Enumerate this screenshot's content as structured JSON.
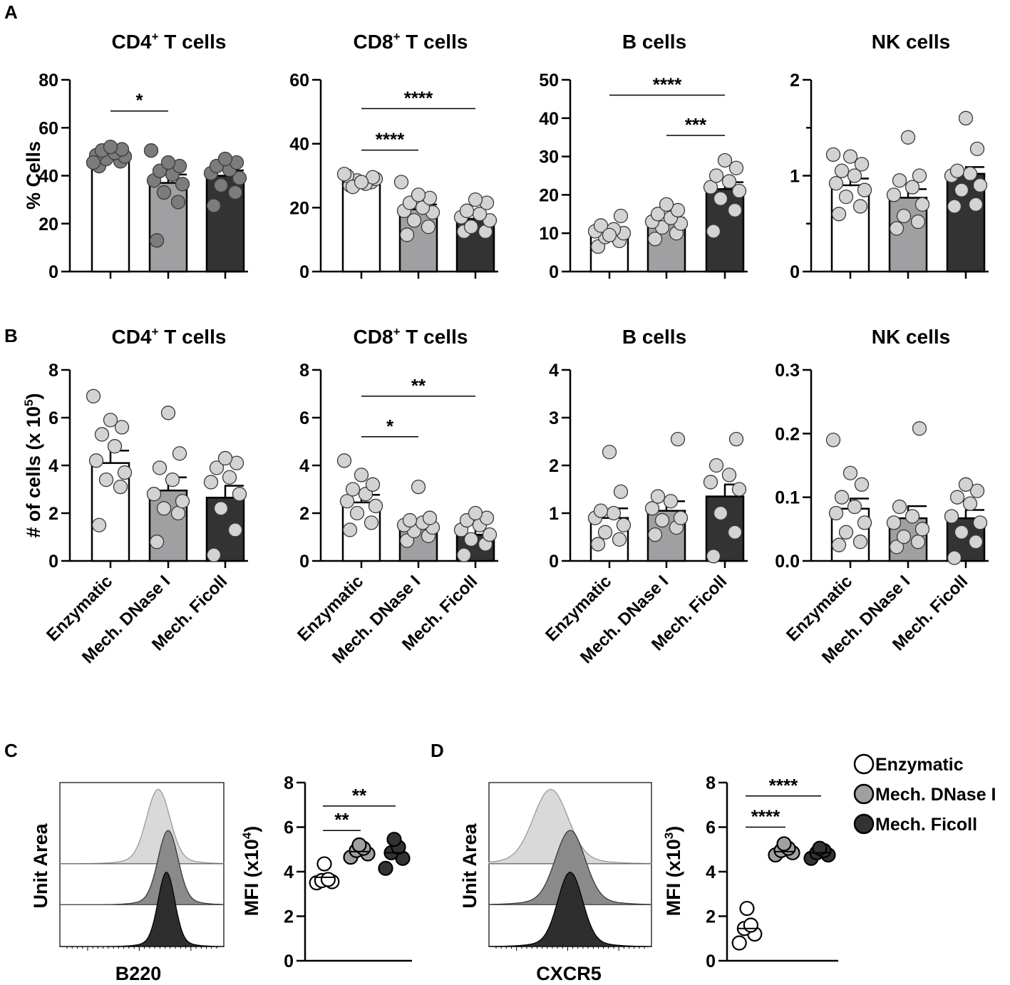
{
  "panel_letters": [
    "A",
    "B",
    "C",
    "D"
  ],
  "colors": {
    "enzymatic": "#ffffff",
    "dnase": "#a0a0a3",
    "ficoll": "#333333",
    "point_light": "#d3d3d3",
    "point_dark": "#7c7c7c",
    "hist_light": "#d9d9d9",
    "hist_mid": "#8a8a8a",
    "hist_dark": "#2e2e2e",
    "axis": "#000000"
  },
  "legend": {
    "items": [
      {
        "label": "Enzymatic",
        "color": "#ffffff"
      },
      {
        "label": "Mech. DNase I",
        "color": "#a0a0a3"
      },
      {
        "label": "Mech. Ficoll",
        "color": "#333333"
      }
    ]
  },
  "chart_data": [
    {
      "id": "A1",
      "type": "bar",
      "panel": "A",
      "title_main": "CD4",
      "title_sup": "+",
      "title_rest": " T cells",
      "ylabel": "% Cells",
      "ylim": [
        0,
        80
      ],
      "yticks": [
        "0",
        "20",
        "40",
        "60",
        "80"
      ],
      "categories": [
        "Enzymatic",
        "Mech. DNase I",
        "Mech. Ficoll"
      ],
      "values": [
        47.5,
        37,
        40
      ],
      "sem": [
        1.0,
        3.5,
        2.2
      ],
      "points": [
        [
          44,
          46,
          47,
          48,
          48.5,
          49.5,
          50.5,
          51,
          52,
          45.5
        ],
        [
          13,
          29,
          33,
          36.5,
          38,
          40.5,
          42,
          44,
          45.5,
          50.5
        ],
        [
          27.5,
          33,
          36,
          39,
          41,
          42.5,
          44,
          45.5,
          47
        ]
      ],
      "point_color": "dark",
      "significance": [
        {
          "from": 0,
          "to": 1,
          "label": "*",
          "y": 67
        }
      ]
    },
    {
      "id": "A2",
      "type": "bar",
      "panel": "A",
      "title_main": "CD8",
      "title_sup": "+",
      "title_rest": " T cells",
      "ylabel": "",
      "ylim": [
        0,
        60
      ],
      "yticks": [
        "0",
        "20",
        "40",
        "60"
      ],
      "categories": [
        "Enzymatic",
        "Mech. DNase I",
        "Mech. Ficoll"
      ],
      "values": [
        28,
        19.5,
        16.5
      ],
      "sem": [
        0.5,
        1.5,
        1.2
      ],
      "points": [
        [
          27,
          28,
          28.5,
          29,
          30,
          27.5,
          26.5,
          29.5,
          28,
          30.5
        ],
        [
          11.5,
          14,
          16,
          18.5,
          19,
          20,
          21.5,
          23,
          24,
          28
        ],
        [
          12.5,
          12.5,
          14,
          16,
          17,
          18,
          19,
          21.5,
          22.5
        ]
      ],
      "point_color": "light",
      "significance": [
        {
          "from": 0,
          "to": 1,
          "label": "****",
          "y": 38
        },
        {
          "from": 0,
          "to": 2,
          "label": "****",
          "y": 51
        }
      ]
    },
    {
      "id": "A3",
      "type": "bar",
      "panel": "A",
      "title_main": "B cells",
      "title_sup": "",
      "title_rest": "",
      "ylabel": "",
      "ylim": [
        0,
        50
      ],
      "yticks": [
        "0",
        "10",
        "20",
        "30",
        "40",
        "50"
      ],
      "categories": [
        "Enzymatic",
        "Mech. DNase I",
        "Mech. Ficoll"
      ],
      "values": [
        10,
        13,
        21.5
      ],
      "sem": [
        0.8,
        1.0,
        1.8
      ],
      "points": [
        [
          6.5,
          8,
          9,
          10,
          10.5,
          11,
          12,
          14.5,
          9.5
        ],
        [
          8.5,
          10,
          11.5,
          12.5,
          13,
          14,
          15,
          16,
          17.5
        ],
        [
          10.5,
          16,
          19,
          21,
          22,
          23.5,
          25,
          27,
          29
        ]
      ],
      "point_color": "light",
      "significance": [
        {
          "from": 1,
          "to": 2,
          "label": "***",
          "y": 35.5
        },
        {
          "from": 0,
          "to": 2,
          "label": "****",
          "y": 46
        }
      ]
    },
    {
      "id": "A4",
      "type": "bar",
      "panel": "A",
      "title_main": "NK cells",
      "title_sup": "",
      "title_rest": "",
      "ylabel": "",
      "ylim": [
        0,
        2
      ],
      "yticks": [
        "0",
        "",
        "1",
        "",
        "2"
      ],
      "categories": [
        "Enzymatic",
        "Mech. DNase I",
        "Mech. Ficoll"
      ],
      "values": [
        0.9,
        0.77,
        1.02
      ],
      "sem": [
        0.07,
        0.09,
        0.07
      ],
      "points": [
        [
          0.6,
          0.68,
          0.78,
          0.85,
          0.92,
          1.0,
          1.05,
          1.12,
          1.2,
          1.22
        ],
        [
          0.45,
          0.52,
          0.58,
          0.7,
          0.8,
          0.88,
          0.95,
          1.0,
          1.4
        ],
        [
          0.68,
          0.7,
          0.85,
          0.9,
          1.0,
          1.02,
          1.05,
          1.28,
          1.6
        ]
      ],
      "point_color": "light",
      "significance": []
    },
    {
      "id": "B1",
      "type": "bar",
      "panel": "B",
      "title_main": "CD4",
      "title_sup": "+",
      "title_rest": " T cells",
      "ylabel": "# of cells (x 10",
      "ylabel_sup": "5",
      "ylabel_end": ")",
      "ylim": [
        0,
        8
      ],
      "yticks": [
        "0",
        "2",
        "4",
        "6",
        "8"
      ],
      "categories": [
        "Enzymatic",
        "Mech. DNase I",
        "Mech. Ficoll"
      ],
      "values": [
        4.1,
        2.95,
        2.65
      ],
      "sem": [
        0.52,
        0.55,
        0.5
      ],
      "points": [
        [
          1.5,
          3.1,
          3.4,
          3.7,
          4.2,
          4.8,
          5.3,
          5.6,
          5.9,
          6.9
        ],
        [
          0.8,
          2.0,
          2.2,
          2.5,
          2.8,
          3.4,
          3.9,
          4.5,
          6.2
        ],
        [
          0.25,
          1.3,
          2.2,
          2.8,
          3.3,
          3.5,
          3.9,
          4.1,
          4.3
        ]
      ],
      "point_color": "light",
      "significance": []
    },
    {
      "id": "B2",
      "type": "bar",
      "panel": "B",
      "title_main": "CD8",
      "title_sup": "+",
      "title_rest": " T cells",
      "ylabel": "",
      "ylim": [
        0,
        8
      ],
      "yticks": [
        "0",
        "2",
        "4",
        "6",
        "8"
      ],
      "categories": [
        "Enzymatic",
        "Mech. DNase I",
        "Mech. Ficoll"
      ],
      "values": [
        2.45,
        1.5,
        1.1
      ],
      "sem": [
        0.32,
        0.25,
        0.22
      ],
      "points": [
        [
          1.3,
          1.6,
          2.0,
          2.3,
          2.5,
          2.8,
          3.0,
          3.2,
          3.6,
          4.2
        ],
        [
          0.85,
          1.05,
          1.25,
          1.4,
          1.5,
          1.6,
          1.7,
          1.8,
          3.1
        ],
        [
          0.25,
          0.7,
          0.9,
          1.1,
          1.3,
          1.5,
          1.7,
          1.8,
          2.0
        ]
      ],
      "point_color": "light",
      "significance": [
        {
          "from": 0,
          "to": 1,
          "label": "*",
          "y": 5.2
        },
        {
          "from": 0,
          "to": 2,
          "label": "**",
          "y": 6.9
        }
      ]
    },
    {
      "id": "B3",
      "type": "bar",
      "panel": "B",
      "title_main": "B cells",
      "title_sup": "",
      "title_rest": "",
      "ylabel": "",
      "ylim": [
        0,
        4
      ],
      "yticks": [
        "0",
        "1",
        "2",
        "3",
        "4"
      ],
      "categories": [
        "Enzymatic",
        "Mech. DNase I",
        "Mech. Ficoll"
      ],
      "values": [
        0.9,
        1.05,
        1.35
      ],
      "sem": [
        0.2,
        0.2,
        0.25
      ],
      "points": [
        [
          0.35,
          0.45,
          0.6,
          0.75,
          0.9,
          1.0,
          1.05,
          1.45,
          2.28
        ],
        [
          0.55,
          0.7,
          0.85,
          0.9,
          1.1,
          1.25,
          1.35,
          2.55
        ],
        [
          0.1,
          0.6,
          1.0,
          1.5,
          1.65,
          1.8,
          2.0,
          2.55
        ]
      ],
      "point_color": "light",
      "significance": []
    },
    {
      "id": "B4",
      "type": "bar",
      "panel": "B",
      "title_main": "NK cells",
      "title_sup": "",
      "title_rest": "",
      "ylabel": "",
      "ylim": [
        0,
        0.3
      ],
      "yticks": [
        "0.0",
        "0.1",
        "0.2",
        "0.3"
      ],
      "categories": [
        "Enzymatic",
        "Mech. DNase I",
        "Mech. Ficoll"
      ],
      "values": [
        0.082,
        0.067,
        0.067
      ],
      "sem": [
        0.016,
        0.019,
        0.013
      ],
      "points": [
        [
          0.025,
          0.03,
          0.045,
          0.06,
          0.075,
          0.085,
          0.1,
          0.12,
          0.138,
          0.19
        ],
        [
          0.022,
          0.03,
          0.038,
          0.05,
          0.06,
          0.07,
          0.085,
          0.208
        ],
        [
          0.005,
          0.03,
          0.045,
          0.06,
          0.07,
          0.09,
          0.1,
          0.11,
          0.12
        ]
      ],
      "point_color": "light",
      "significance": []
    },
    {
      "id": "C-hist",
      "type": "histogram",
      "panel": "C",
      "ylabel": "Unit Area",
      "xlabel": "B220",
      "series": [
        {
          "name": "Enzymatic",
          "peak": 0.6
        },
        {
          "name": "Mech. DNase I",
          "peak": 0.66
        },
        {
          "name": "Mech. Ficoll",
          "peak": 0.65
        }
      ]
    },
    {
      "id": "C-mfi",
      "type": "scatter",
      "panel": "C",
      "ylabel": "MFI (x10",
      "ylabel_sup": "4",
      "ylabel_end": ")",
      "ylim": [
        0,
        8
      ],
      "yticks": [
        "0",
        "2",
        "4",
        "6",
        "8"
      ],
      "categories": [
        "Enzymatic",
        "Mech. DNase I",
        "Mech. Ficoll"
      ],
      "means": [
        3.75,
        4.9,
        4.85
      ],
      "points": [
        [
          3.5,
          3.55,
          3.6,
          3.65,
          4.35
        ],
        [
          4.65,
          4.8,
          4.95,
          5.05,
          5.2
        ],
        [
          4.15,
          4.6,
          4.85,
          5.1,
          5.45
        ]
      ],
      "significance": [
        {
          "from": 0,
          "to": 1,
          "label": "**",
          "y": 5.85
        },
        {
          "from": 0,
          "to": 2,
          "label": "**",
          "y": 6.95
        }
      ]
    },
    {
      "id": "D-hist",
      "type": "histogram",
      "panel": "D",
      "ylabel": "Unit Area",
      "xlabel": "CXCR5",
      "series": [
        {
          "name": "Enzymatic",
          "peak": 0.38
        },
        {
          "name": "Mech. DNase I",
          "peak": 0.5
        },
        {
          "name": "Mech. Ficoll",
          "peak": 0.5
        }
      ]
    },
    {
      "id": "D-mfi",
      "type": "scatter",
      "panel": "D",
      "ylabel": "MFI (x10",
      "ylabel_sup": "3",
      "ylabel_end": ")",
      "ylim": [
        0,
        8
      ],
      "yticks": [
        "0",
        "2",
        "4",
        "6",
        "8"
      ],
      "categories": [
        "Enzymatic",
        "Mech. DNase I",
        "Mech. Ficoll"
      ],
      "means": [
        1.45,
        4.9,
        4.85
      ],
      "points": [
        [
          0.8,
          1.2,
          1.45,
          1.6,
          2.35
        ],
        [
          4.75,
          4.85,
          4.95,
          5.05,
          5.25
        ],
        [
          4.6,
          4.75,
          4.85,
          4.95,
          5.05
        ]
      ],
      "significance": [
        {
          "from": 0,
          "to": 1,
          "label": "****",
          "y": 6.0
        },
        {
          "from": 0,
          "to": 2,
          "label": "****",
          "y": 7.4
        }
      ]
    }
  ]
}
